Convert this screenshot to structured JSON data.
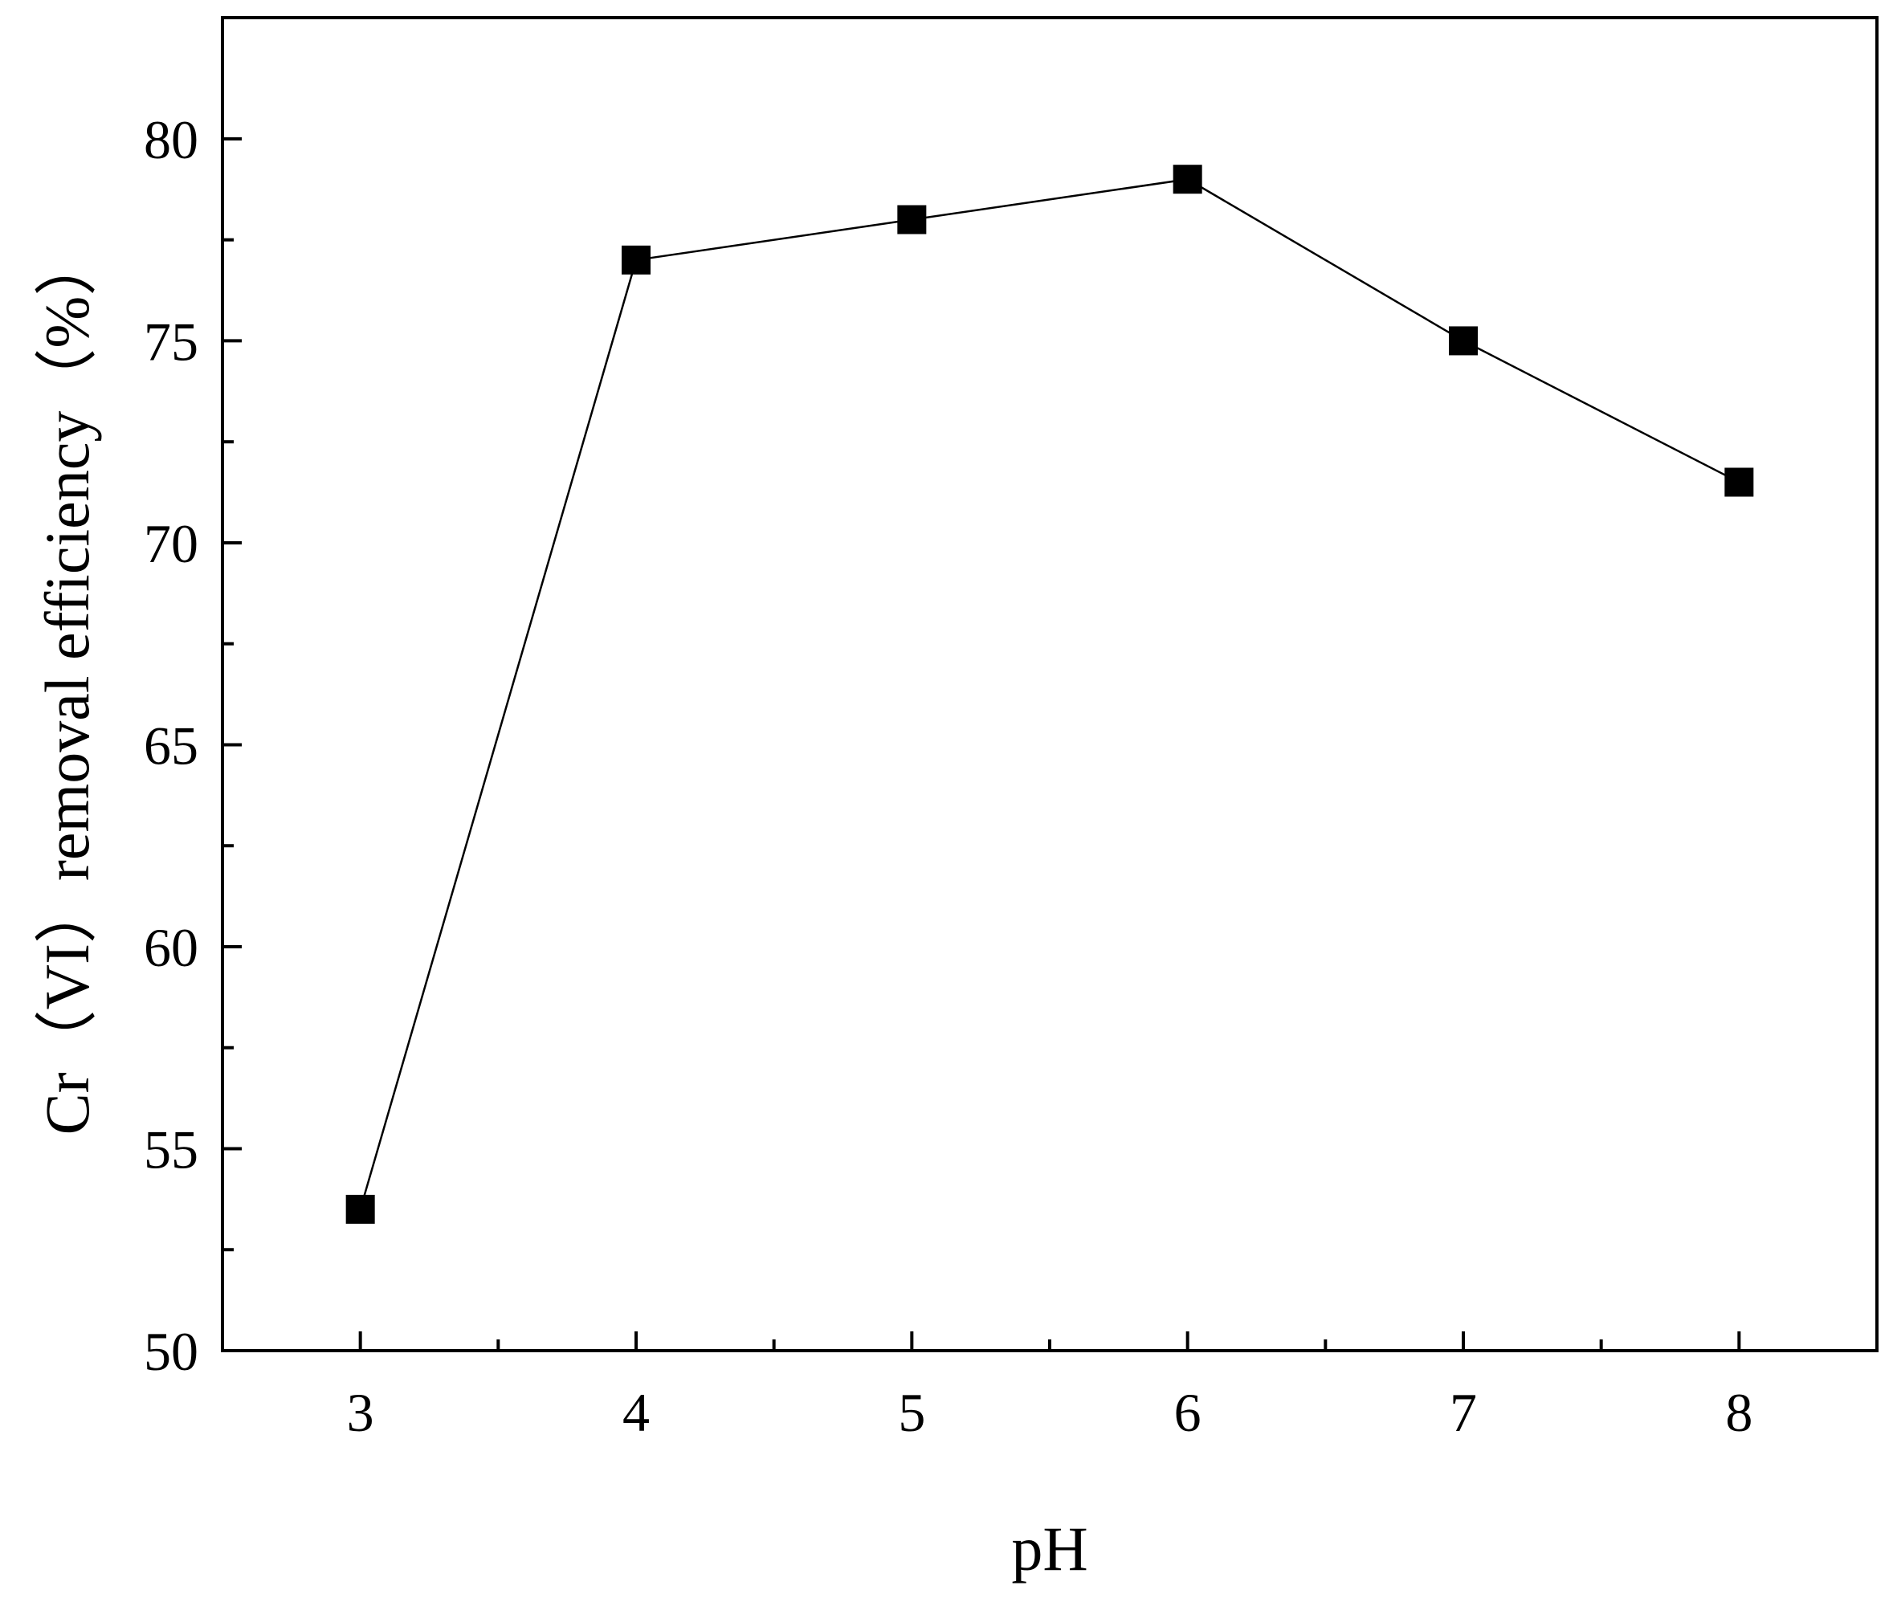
{
  "chart_data": {
    "type": "line",
    "xlabel": "pH",
    "ylabel": "Cr（VI）removal efficiency（%）",
    "xlim": [
      2.5,
      8.5
    ],
    "ylim": [
      50,
      83
    ],
    "x_ticks": [
      3,
      4,
      5,
      6,
      7,
      8
    ],
    "x_tick_labels": [
      "3",
      "4",
      "5",
      "6",
      "7",
      "8"
    ],
    "x_minor_ticks": [
      3.5,
      4.5,
      5.5,
      6.5,
      7.5
    ],
    "y_ticks": [
      50,
      55,
      60,
      65,
      70,
      75,
      80
    ],
    "y_tick_labels": [
      "50",
      "55",
      "60",
      "65",
      "70",
      "75",
      "80"
    ],
    "y_minor_ticks": [
      52.5,
      57.5,
      62.5,
      67.5,
      72.5,
      77.5
    ],
    "grid": false,
    "series": [
      {
        "marker": "square",
        "color": "#000000",
        "x": [
          3,
          4,
          5,
          6,
          7,
          8
        ],
        "y": [
          53.5,
          77.0,
          78.0,
          79.0,
          75.0,
          71.5
        ]
      }
    ]
  }
}
